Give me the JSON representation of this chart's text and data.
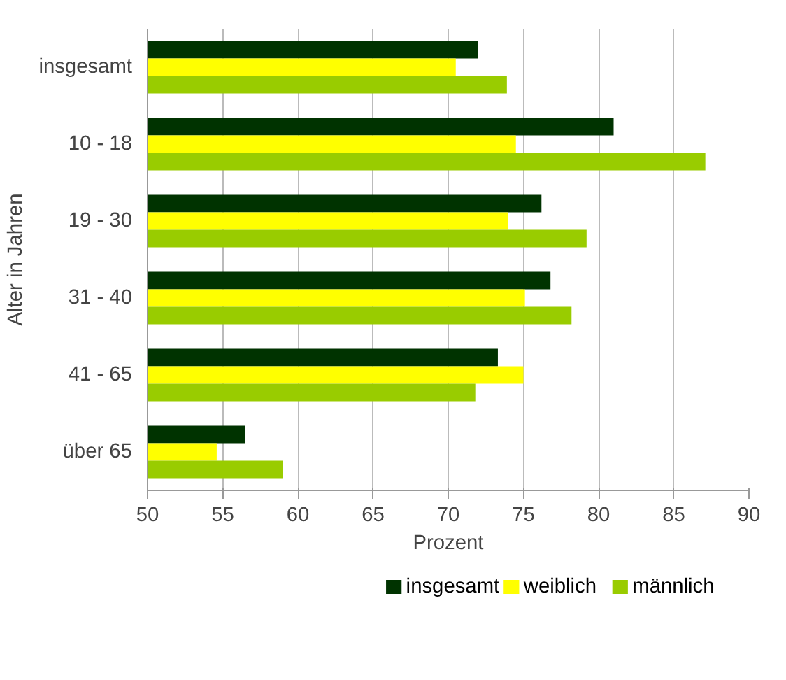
{
  "chart_data": {
    "type": "bar",
    "orientation": "horizontal",
    "categories": [
      "insgesamt",
      "10 - 18",
      "19 - 30",
      "31 - 40",
      "41 - 65",
      "über 65"
    ],
    "series": [
      {
        "name": "insgesamt",
        "color": "#003300",
        "values": [
          72.0,
          81.0,
          76.2,
          76.8,
          73.3,
          56.5
        ]
      },
      {
        "name": "weiblich",
        "color": "#ffff00",
        "values": [
          70.5,
          74.5,
          74.0,
          75.1,
          75.0,
          54.6
        ]
      },
      {
        "name": "männlich",
        "color": "#99cc00",
        "values": [
          73.9,
          87.1,
          79.2,
          78.2,
          71.8,
          59.0
        ]
      }
    ],
    "xlim": [
      50,
      90
    ],
    "xticks": [
      50,
      55,
      60,
      65,
      70,
      75,
      80,
      85,
      90
    ],
    "xlabel": "Prozent",
    "ylabel": "Alter in Jahren",
    "grid": "x",
    "legend": "bottom"
  }
}
